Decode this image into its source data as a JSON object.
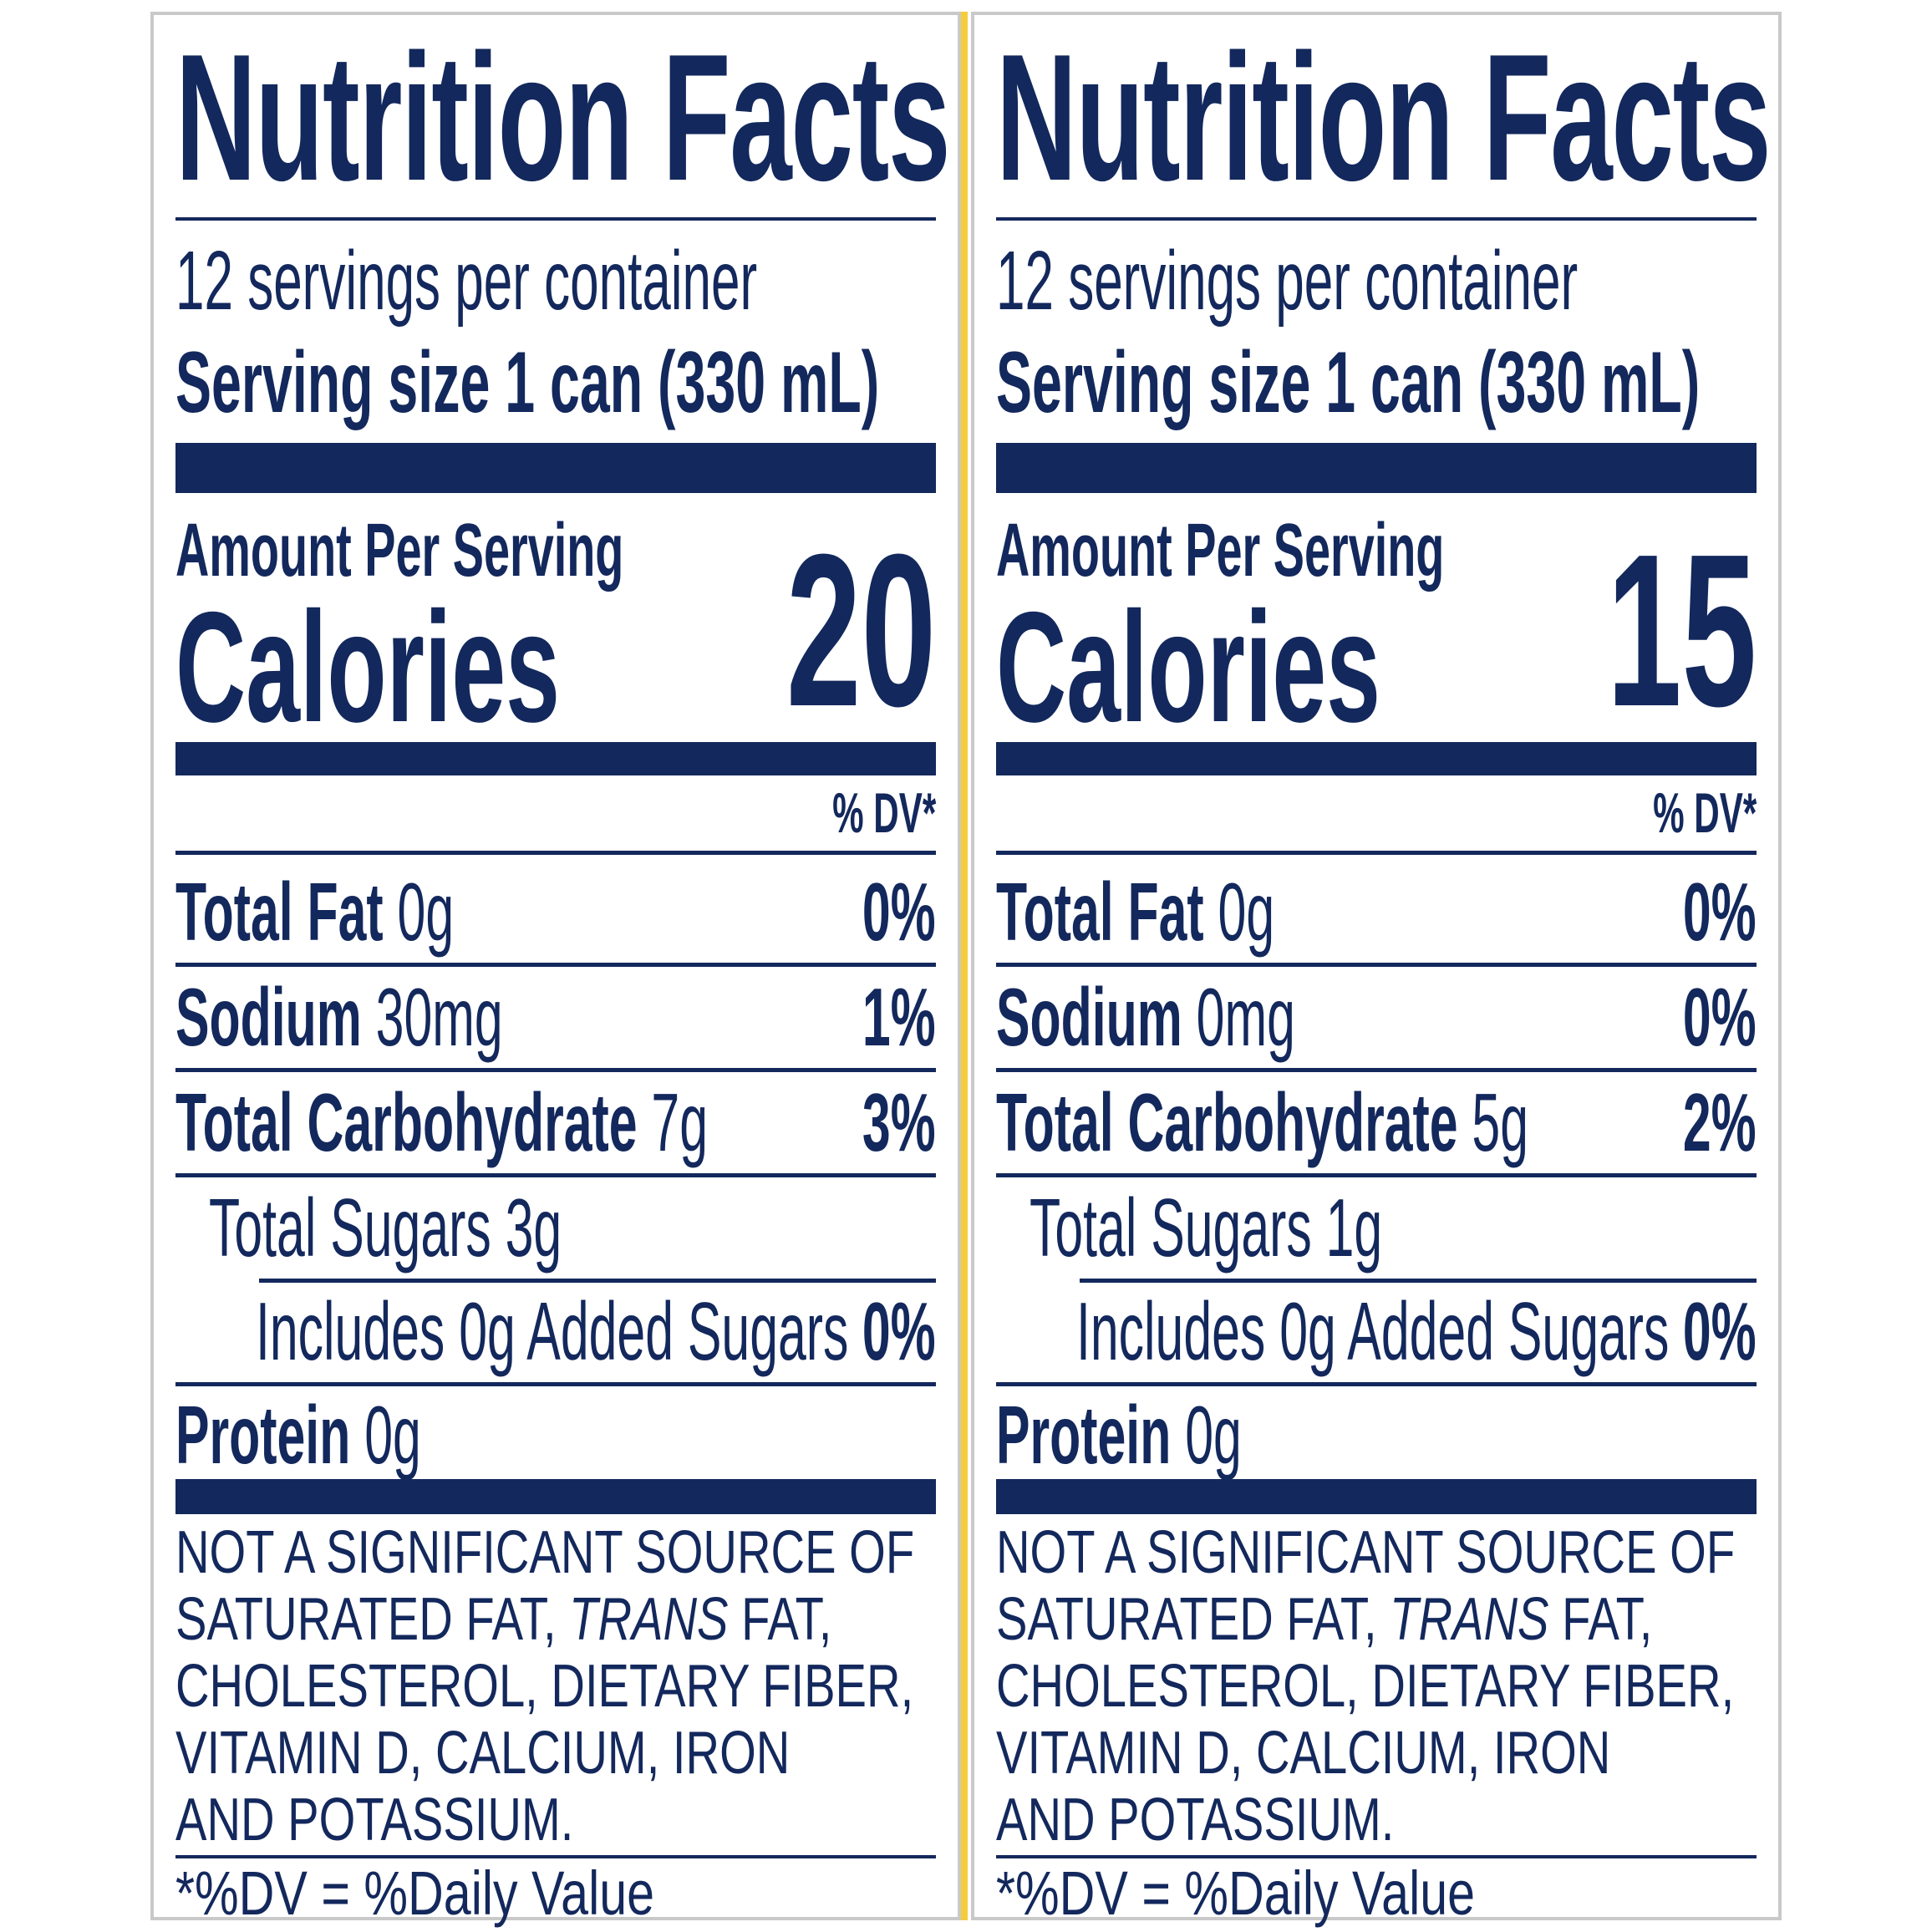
{
  "panels": [
    {
      "title": "Nutrition Facts",
      "servings_per_container": "12 servings per container",
      "serving_size": "Serving size 1 can (330 mL)",
      "amount_per_serving": "Amount Per Serving",
      "calories_label": "Calories",
      "calories_value": "20",
      "dv_header": "% DV*",
      "nutrients": [
        {
          "name": "Total Fat",
          "amount": "0g",
          "dv": "0%"
        },
        {
          "name": "Sodium",
          "amount": "30mg",
          "dv": "1%"
        },
        {
          "name": "Total Carbohydrate",
          "amount": "7g",
          "dv": "3%"
        },
        {
          "name": "Total Sugars 3g",
          "amount": "",
          "dv": ""
        },
        {
          "name": "Includes 0g Added Sugars",
          "amount": "",
          "dv": "0%"
        },
        {
          "name": "Protein",
          "amount": "0g",
          "dv": ""
        }
      ],
      "disclaimer_lines": [
        "NOT A SIGNIFICANT SOURCE OF",
        "SATURATED FAT, ",
        "TRANS",
        " FAT,",
        "CHOLESTEROL, DIETARY FIBER,",
        "VITAMIN D, CALCIUM, IRON",
        "AND POTASSIUM."
      ],
      "footnote": "*%DV = %Daily Value"
    },
    {
      "title": "Nutrition Facts",
      "servings_per_container": "12 servings per container",
      "serving_size": "Serving size 1 can (330 mL)",
      "amount_per_serving": "Amount Per Serving",
      "calories_label": "Calories",
      "calories_value": "15",
      "dv_header": "% DV*",
      "nutrients": [
        {
          "name": "Total Fat",
          "amount": "0g",
          "dv": "0%"
        },
        {
          "name": "Sodium",
          "amount": "0mg",
          "dv": "0%"
        },
        {
          "name": "Total Carbohydrate",
          "amount": "5g",
          "dv": "2%"
        },
        {
          "name": "Total Sugars 1g",
          "amount": "",
          "dv": ""
        },
        {
          "name": "Includes 0g Added Sugars",
          "amount": "",
          "dv": "0%"
        },
        {
          "name": "Protein",
          "amount": "0g",
          "dv": ""
        }
      ],
      "disclaimer_lines": [
        "NOT A SIGNIFICANT SOURCE OF",
        "SATURATED FAT, ",
        "TRANS",
        " FAT,",
        "CHOLESTEROL, DIETARY FIBER,",
        "VITAMIN D, CALCIUM, IRON",
        "AND POTASSIUM."
      ],
      "footnote": "*%DV = %Daily Value"
    }
  ],
  "colors": {
    "ink": "#13285c",
    "border": "#c9c9c9",
    "divider": "#f4cd3c"
  }
}
